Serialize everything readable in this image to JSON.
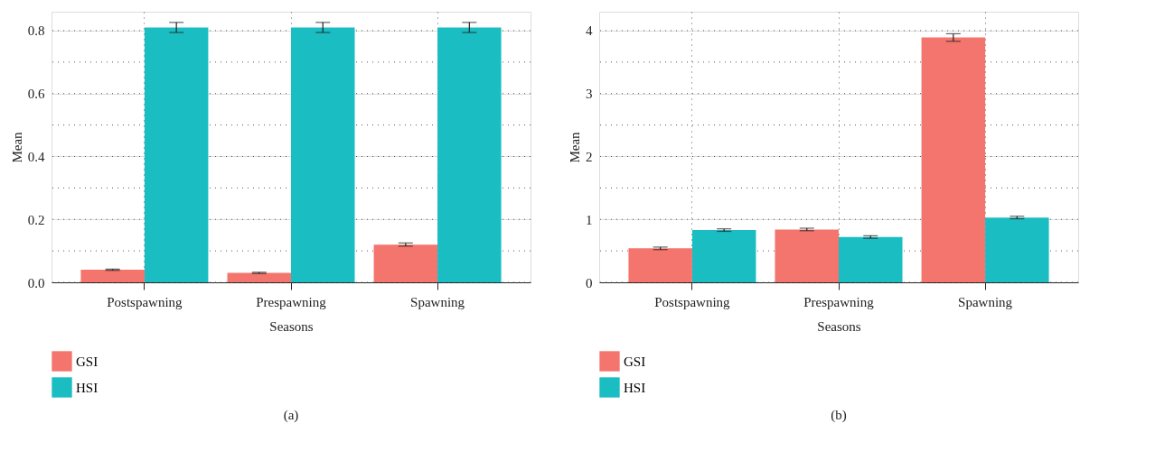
{
  "chart_data": [
    {
      "type": "bar",
      "title": "(a)",
      "xlabel": "Seasons",
      "ylabel": "Mean",
      "categories": [
        "Postspawning",
        "Prespawning",
        "Spawning"
      ],
      "series": [
        {
          "name": "GSI",
          "color": "#f3756d",
          "values": [
            0.04,
            0.03,
            0.12
          ],
          "errors": [
            0.002,
            0.002,
            0.005
          ]
        },
        {
          "name": "HSI",
          "color": "#1abdc2",
          "values": [
            0.81,
            0.81,
            0.81
          ],
          "errors": [
            0.016,
            0.016,
            0.016
          ]
        }
      ],
      "ylim": [
        0,
        0.86
      ],
      "yticks": [
        {
          "value": 0,
          "label": "0.0"
        },
        {
          "value": 0.1,
          "label": null
        },
        0.2,
        {
          "value": 0.3,
          "label": null
        },
        0.4,
        {
          "value": 0.5,
          "label": null
        },
        0.6,
        {
          "value": 0.7,
          "label": null
        },
        0.8
      ],
      "grid": true,
      "legend": "bottom left"
    },
    {
      "type": "bar",
      "title": "(b)",
      "xlabel": "Seasons",
      "ylabel": "Mean",
      "categories": [
        "Postspawning",
        "Prespawning",
        "Spawning"
      ],
      "series": [
        {
          "name": "GSI",
          "color": "#f3756d",
          "values": [
            0.54,
            0.84,
            3.89
          ],
          "errors": [
            0.02,
            0.02,
            0.06
          ]
        },
        {
          "name": "HSI",
          "color": "#1abdc2",
          "values": [
            0.83,
            0.72,
            1.03
          ],
          "errors": [
            0.02,
            0.02,
            0.02
          ]
        }
      ],
      "ylim": [
        0,
        4.3
      ],
      "yticks": [
        0,
        {
          "value": 0.5,
          "label": null
        },
        1,
        {
          "value": 1.5,
          "label": null
        },
        2,
        {
          "value": 2.5,
          "label": null
        },
        3,
        {
          "value": 3.5,
          "label": null
        },
        4
      ],
      "grid": true,
      "legend": "bottom left"
    }
  ]
}
